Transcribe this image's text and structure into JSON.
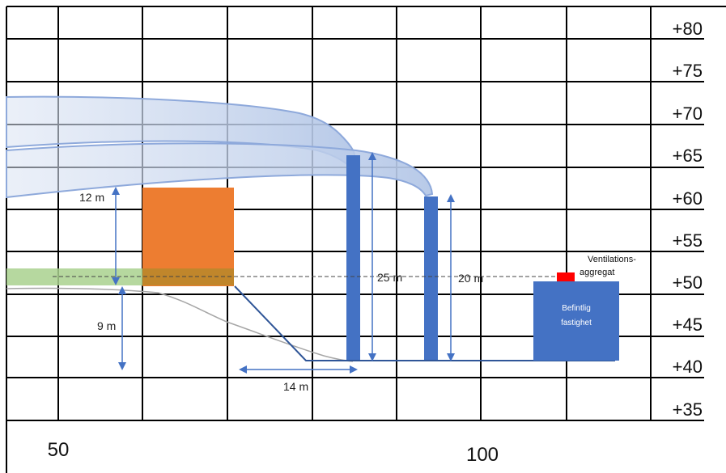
{
  "elevations": [
    "+80",
    "+75",
    "+70",
    "+65",
    "+60",
    "+55",
    "+50",
    "+45",
    "+40",
    "+35"
  ],
  "x_ticks": [
    "50",
    "100"
  ],
  "dimensions": {
    "d12": "12 m",
    "d9": "9 m",
    "d14": "14 m",
    "d25": "25 m",
    "d20": "20 m"
  },
  "ventilation": {
    "line1": "Ventilations-",
    "line2": "aggregat"
  },
  "building": {
    "line1": "Befintlig",
    "line2": "fastighet"
  },
  "colors": {
    "orange_block": "#ED7D31",
    "chimney": "#4472C4",
    "plume": "#B4C7E7",
    "green_band": "#A9D18E",
    "ventilation_unit": "#FF0000",
    "arrow": "#4472C4"
  }
}
